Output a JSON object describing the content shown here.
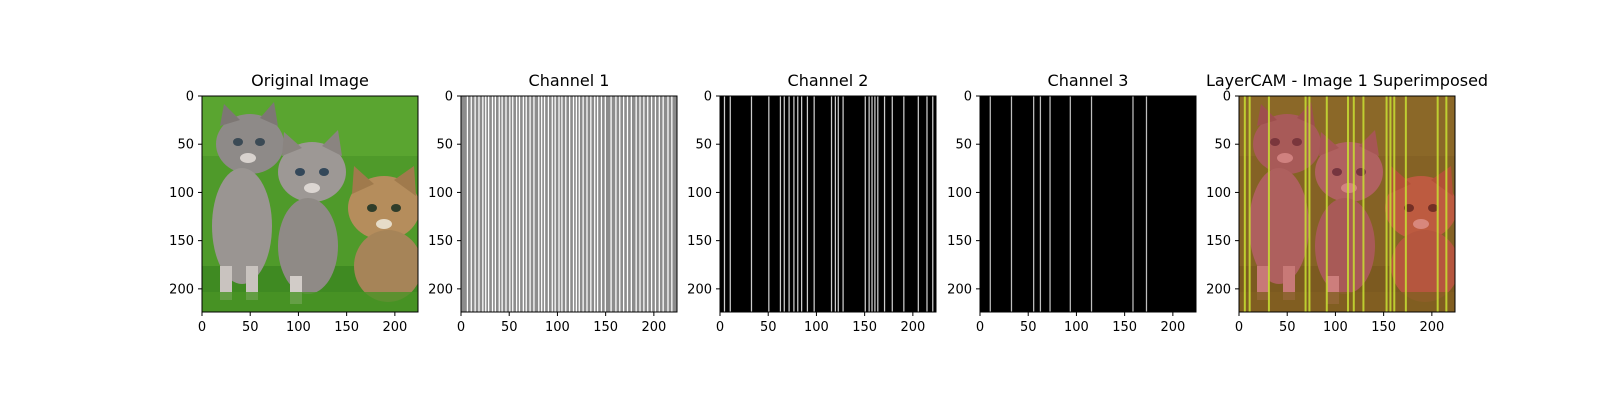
{
  "chart_data": [
    {
      "type": "image",
      "title": "Original Image",
      "content": "photo of three kittens on grass",
      "xlim": [
        0,
        224
      ],
      "ylim": [
        224,
        0
      ],
      "xticks": [
        0,
        50,
        100,
        150,
        200
      ],
      "yticks": [
        0,
        50,
        100,
        150,
        200
      ]
    },
    {
      "type": "heatmap",
      "title": "Channel 1",
      "colormap": "gray",
      "background_value": 0.55,
      "stripe_value": 1.0,
      "stripe_columns": [
        6,
        10,
        14,
        18,
        22,
        25,
        28,
        32,
        35,
        39,
        42,
        46,
        50,
        53,
        57,
        60,
        64,
        67,
        71,
        75,
        80,
        83,
        86,
        90,
        94,
        97,
        101,
        104,
        108,
        112,
        116,
        119,
        122,
        126,
        130,
        134,
        138,
        141,
        145,
        149,
        155,
        160,
        164,
        168,
        172,
        176,
        181,
        185,
        189,
        193,
        197,
        201,
        205,
        209,
        214,
        218
      ],
      "xlim": [
        0,
        224
      ],
      "ylim": [
        224,
        0
      ],
      "xticks": [
        0,
        50,
        100,
        150,
        200
      ],
      "yticks": [
        0,
        50,
        100,
        150,
        200
      ]
    },
    {
      "type": "heatmap",
      "title": "Channel 2",
      "colormap": "gray",
      "background_value": 0.0,
      "stripe_value": 0.8,
      "stripe_columns": [
        4,
        10,
        32,
        50,
        62,
        66,
        71,
        76,
        80,
        84,
        90,
        97,
        115,
        119,
        122,
        127,
        150,
        154,
        157,
        160,
        163,
        170,
        178,
        190,
        205,
        214,
        220
      ],
      "xlim": [
        0,
        224
      ],
      "ylim": [
        224,
        0
      ],
      "xticks": [
        0,
        50,
        100,
        150,
        200
      ],
      "yticks": [
        0,
        50,
        100,
        150,
        200
      ]
    },
    {
      "type": "heatmap",
      "title": "Channel 3",
      "colormap": "gray",
      "background_value": 0.0,
      "stripe_value": 0.75,
      "stripe_columns": [
        10,
        32,
        55,
        62,
        72,
        93,
        115,
        158,
        172
      ],
      "xlim": [
        0,
        224
      ],
      "ylim": [
        224,
        0
      ],
      "xticks": [
        0,
        50,
        100,
        150,
        200
      ],
      "yticks": [
        0,
        50,
        100,
        150,
        200
      ]
    },
    {
      "type": "image",
      "title": "LayerCAM - Image 1 Superimposed",
      "content": "kitten photo with red tint and yellow-green vertical stripes overlaid",
      "stripe_columns": [
        5,
        10,
        30,
        68,
        72,
        90,
        112,
        118,
        128,
        152,
        156,
        160,
        172,
        205,
        214
      ],
      "xlim": [
        0,
        224
      ],
      "ylim": [
        224,
        0
      ],
      "xticks": [
        0,
        50,
        100,
        150,
        200
      ],
      "yticks": [
        0,
        50,
        100,
        150,
        200
      ]
    }
  ]
}
